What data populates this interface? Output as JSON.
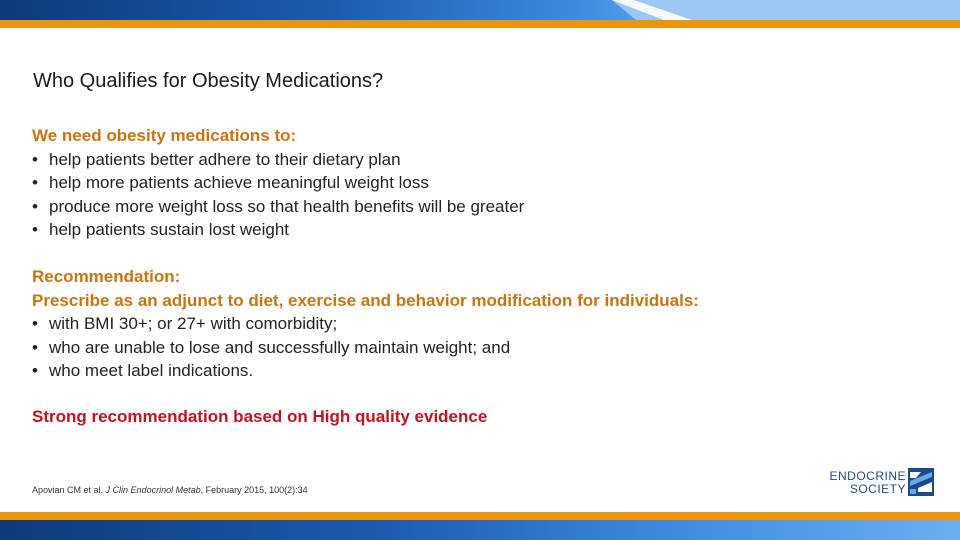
{
  "slide": {
    "title": "Who Qualifies for Obesity Medications?",
    "section1": {
      "heading": "We need obesity medications to:",
      "bullets": [
        "help patients better adhere to their dietary plan",
        "help more patients achieve meaningful weight loss",
        "produce more weight loss so that health benefits will be greater",
        "help patients sustain lost weight"
      ]
    },
    "section2": {
      "heading_line1": "Recommendation:",
      "heading_line2": "Prescribe as an adjunct to diet, exercise and behavior modification for individuals:",
      "bullets": [
        "with BMI 30+; or 27+ with comorbidity;",
        "who are unable to lose and successfully maintain weight; and",
        "who meet label indications."
      ]
    },
    "strong_recommendation": "Strong recommendation based on High quality evidence",
    "citation": {
      "authors": "Apovian CM et al. ",
      "journal": "J Clin Endocrinol Metab",
      "rest": ", February 2015, 100(2):34"
    },
    "logo": {
      "line1": "ENDOCRINE",
      "line2": "SOCIETY"
    },
    "bullet_glyph": "•",
    "colors": {
      "heading": "#c77512",
      "strong": "#c0141c",
      "accent_orange": "#e8960f",
      "brand_blue": "#1b4a8a"
    }
  }
}
